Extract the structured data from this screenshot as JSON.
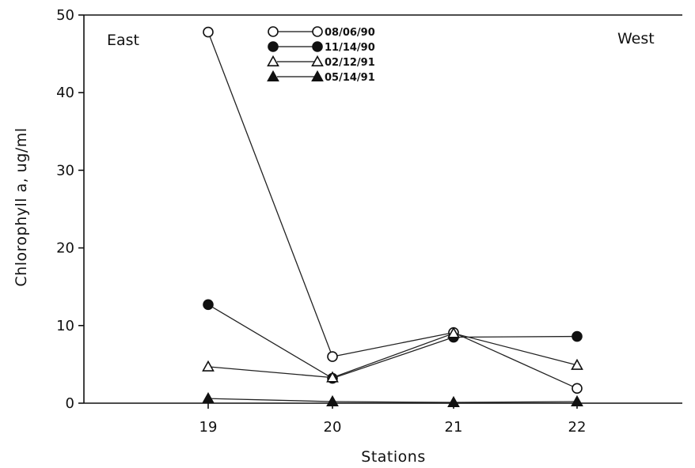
{
  "chart_data": {
    "type": "line",
    "xlabel": "Stations",
    "ylabel": "Chlorophyll a, ug/ml",
    "categories": [
      "19",
      "20",
      "21",
      "22"
    ],
    "ylim": [
      0,
      50
    ],
    "yticks": [
      "0",
      "10",
      "20",
      "30",
      "40",
      "50"
    ],
    "grid": false,
    "legend_placement": "top-center",
    "annotations": {
      "left": "East",
      "right": "West"
    },
    "series": [
      {
        "name": "08/06/90",
        "marker": "open-circle",
        "values": [
          47.8,
          6.0,
          9.1,
          1.9
        ]
      },
      {
        "name": "11/14/90",
        "marker": "filled-circle",
        "values": [
          12.7,
          3.2,
          8.5,
          8.6
        ]
      },
      {
        "name": "02/12/91",
        "marker": "open-triangle",
        "values": [
          4.7,
          3.3,
          9.0,
          4.9
        ]
      },
      {
        "name": "05/14/91",
        "marker": "filled-triangle",
        "values": [
          0.6,
          0.2,
          0.1,
          0.2
        ]
      }
    ]
  }
}
